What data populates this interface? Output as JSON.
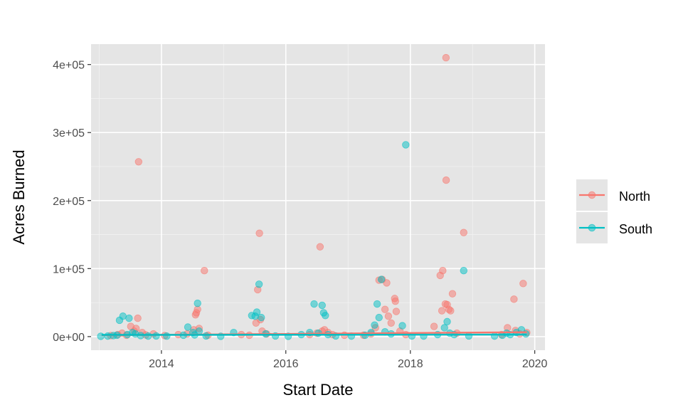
{
  "chart_data": {
    "type": "scatter",
    "xlabel": "Start Date",
    "ylabel": "Acres Burned",
    "xlim": [
      "2012-11-14",
      "2020-03-01"
    ],
    "ylim": [
      -20000,
      430000
    ],
    "x_ticks": [
      {
        "date": "2014-01-01",
        "label": "2014"
      },
      {
        "date": "2016-01-01",
        "label": "2016"
      },
      {
        "date": "2018-01-01",
        "label": "2018"
      },
      {
        "date": "2020-01-01",
        "label": "2020"
      }
    ],
    "y_ticks": [
      {
        "value": 0,
        "label": "0e+00"
      },
      {
        "value": 100000,
        "label": "1e+05"
      },
      {
        "value": 200000,
        "label": "2e+05"
      },
      {
        "value": 300000,
        "label": "3e+05"
      },
      {
        "value": 400000,
        "label": "4e+05"
      }
    ],
    "grid": true,
    "legend": {
      "position": "right",
      "entries": [
        "North",
        "South"
      ]
    },
    "colors": {
      "North": "#F8766D",
      "South": "#00BFC4",
      "panel": "#E5E5E5",
      "grid": "#FFFFFF"
    },
    "series": [
      {
        "name": "North",
        "trend": [
          [
            "2013-01-15",
            2000
          ],
          [
            "2019-11-15",
            6500
          ]
        ],
        "points": [
          [
            "2013-03-10",
            1500
          ],
          [
            "2013-04-20",
            3000
          ],
          [
            "2013-05-15",
            5000
          ],
          [
            "2013-06-10",
            2000
          ],
          [
            "2013-07-05",
            15000
          ],
          [
            "2013-07-25",
            8000
          ],
          [
            "2013-08-05",
            12000
          ],
          [
            "2013-08-15",
            27000
          ],
          [
            "2013-08-20",
            257000
          ],
          [
            "2013-09-10",
            6000
          ],
          [
            "2013-10-01",
            2500
          ],
          [
            "2013-11-15",
            4000
          ],
          [
            "2014-01-20",
            1500
          ],
          [
            "2014-04-10",
            3000
          ],
          [
            "2014-06-01",
            4000
          ],
          [
            "2014-07-10",
            10000
          ],
          [
            "2014-07-20",
            32000
          ],
          [
            "2014-07-25",
            35000
          ],
          [
            "2014-08-01",
            40000
          ],
          [
            "2014-08-10",
            12000
          ],
          [
            "2014-09-10",
            97000
          ],
          [
            "2014-10-01",
            2000
          ],
          [
            "2015-04-15",
            3000
          ],
          [
            "2015-06-01",
            2000
          ],
          [
            "2015-07-10",
            20000
          ],
          [
            "2015-07-20",
            69000
          ],
          [
            "2015-07-30",
            152000
          ],
          [
            "2015-08-05",
            25000
          ],
          [
            "2015-08-15",
            8000
          ],
          [
            "2015-09-10",
            4000
          ],
          [
            "2016-05-20",
            3000
          ],
          [
            "2016-07-01",
            5000
          ],
          [
            "2016-07-20",
            132000
          ],
          [
            "2016-08-01",
            8000
          ],
          [
            "2016-08-15",
            10000
          ],
          [
            "2016-09-05",
            6000
          ],
          [
            "2016-10-01",
            3000
          ],
          [
            "2016-12-10",
            2000
          ],
          [
            "2017-04-01",
            2000
          ],
          [
            "2017-05-15",
            4000
          ],
          [
            "2017-06-10",
            13000
          ],
          [
            "2017-07-01",
            83000
          ],
          [
            "2017-07-20",
            84000
          ],
          [
            "2017-08-05",
            40000
          ],
          [
            "2017-08-15",
            79000
          ],
          [
            "2017-08-25",
            30000
          ],
          [
            "2017-09-10",
            20000
          ],
          [
            "2017-10-01",
            56000
          ],
          [
            "2017-10-05",
            52000
          ],
          [
            "2017-10-10",
            37000
          ],
          [
            "2017-11-01",
            8000
          ],
          [
            "2017-12-05",
            3000
          ],
          [
            "2018-05-20",
            15000
          ],
          [
            "2018-06-25",
            90000
          ],
          [
            "2018-07-10",
            97000
          ],
          [
            "2018-07-05",
            38000
          ],
          [
            "2018-07-25",
            48000
          ],
          [
            "2018-07-29",
            410000
          ],
          [
            "2018-07-30",
            230000
          ],
          [
            "2018-08-05",
            47000
          ],
          [
            "2018-08-15",
            40000
          ],
          [
            "2018-08-25",
            38000
          ],
          [
            "2018-09-05",
            63000
          ],
          [
            "2018-10-01",
            5000
          ],
          [
            "2018-11-10",
            153000
          ],
          [
            "2019-06-20",
            3000
          ],
          [
            "2019-07-25",
            13000
          ],
          [
            "2019-09-01",
            55000
          ],
          [
            "2019-09-10",
            9000
          ],
          [
            "2019-10-05",
            4000
          ],
          [
            "2019-10-25",
            78000
          ],
          [
            "2019-11-15",
            6000
          ]
        ]
      },
      {
        "name": "South",
        "trend": [
          [
            "2013-01-15",
            2500
          ],
          [
            "2019-11-15",
            3000
          ]
        ],
        "points": [
          [
            "2013-01-10",
            500
          ],
          [
            "2013-02-20",
            800
          ],
          [
            "2013-03-25",
            1500
          ],
          [
            "2013-04-15",
            2000
          ],
          [
            "2013-04-30",
            24000
          ],
          [
            "2013-05-20",
            30000
          ],
          [
            "2013-06-15",
            3000
          ],
          [
            "2013-06-25",
            27000
          ],
          [
            "2013-07-15",
            6000
          ],
          [
            "2013-08-01",
            4000
          ],
          [
            "2013-09-01",
            1500
          ],
          [
            "2013-10-15",
            800
          ],
          [
            "2013-12-01",
            1000
          ],
          [
            "2014-02-01",
            700
          ],
          [
            "2014-05-10",
            2000
          ],
          [
            "2014-06-05",
            14000
          ],
          [
            "2014-07-05",
            6000
          ],
          [
            "2014-07-15",
            2500
          ],
          [
            "2014-08-01",
            49000
          ],
          [
            "2014-08-10",
            8000
          ],
          [
            "2014-09-20",
            1000
          ],
          [
            "2014-12-15",
            500
          ],
          [
            "2015-03-01",
            6000
          ],
          [
            "2015-06-15",
            31000
          ],
          [
            "2015-07-05",
            30000
          ],
          [
            "2015-07-15",
            36000
          ],
          [
            "2015-07-28",
            77000
          ],
          [
            "2015-08-10",
            28000
          ],
          [
            "2015-09-05",
            4000
          ],
          [
            "2015-11-01",
            1000
          ],
          [
            "2016-01-15",
            500
          ],
          [
            "2016-04-01",
            3000
          ],
          [
            "2016-05-20",
            6000
          ],
          [
            "2016-06-15",
            48000
          ],
          [
            "2016-07-10",
            5000
          ],
          [
            "2016-08-01",
            46000
          ],
          [
            "2016-08-10",
            35000
          ],
          [
            "2016-08-20",
            31000
          ],
          [
            "2016-09-05",
            3000
          ],
          [
            "2016-10-20",
            1000
          ],
          [
            "2017-01-20",
            800
          ],
          [
            "2017-04-10",
            2000
          ],
          [
            "2017-05-15",
            6000
          ],
          [
            "2017-06-05",
            17000
          ],
          [
            "2017-06-20",
            48000
          ],
          [
            "2017-07-01",
            28000
          ],
          [
            "2017-07-15",
            84000
          ],
          [
            "2017-08-05",
            7000
          ],
          [
            "2017-09-10",
            4000
          ],
          [
            "2017-11-15",
            16000
          ],
          [
            "2017-12-05",
            282000
          ],
          [
            "2018-01-10",
            1000
          ],
          [
            "2018-03-20",
            800
          ],
          [
            "2018-06-10",
            3000
          ],
          [
            "2018-07-20",
            13000
          ],
          [
            "2018-08-05",
            22000
          ],
          [
            "2018-08-20",
            5000
          ],
          [
            "2018-09-15",
            3000
          ],
          [
            "2018-11-10",
            97000
          ],
          [
            "2018-12-10",
            1000
          ],
          [
            "2019-05-10",
            800
          ],
          [
            "2019-06-25",
            2000
          ],
          [
            "2019-07-20",
            5000
          ],
          [
            "2019-08-10",
            3000
          ],
          [
            "2019-09-15",
            6000
          ],
          [
            "2019-10-15",
            10000
          ],
          [
            "2019-11-10",
            4000
          ]
        ]
      }
    ]
  }
}
